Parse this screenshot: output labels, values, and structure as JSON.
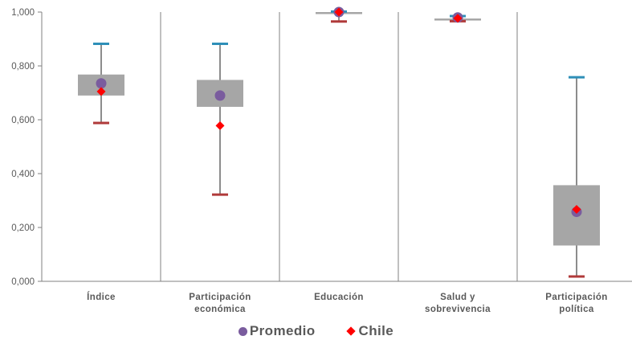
{
  "chart_data": {
    "type": "boxplot",
    "ylim": [
      0,
      1
    ],
    "yticks": [
      "0,000",
      "0,200",
      "0,400",
      "0,600",
      "0,800",
      "1,000"
    ],
    "yticks_values": [
      0,
      0.2,
      0.4,
      0.6,
      0.8,
      1.0
    ],
    "categories": [
      [
        "Índice"
      ],
      [
        "Participación",
        "económica"
      ],
      [
        "Educación"
      ],
      [
        "Salud y",
        "sobrevivencia"
      ],
      [
        "Participación",
        "política"
      ]
    ],
    "series": [
      {
        "name": "Promedio",
        "values": [
          0.735,
          0.69,
          1.0,
          0.98,
          0.258
        ]
      },
      {
        "name": "Chile",
        "values": [
          0.705,
          0.578,
          1.0,
          0.977,
          0.267
        ]
      }
    ],
    "box": [
      {
        "max": 0.882,
        "q3": 0.768,
        "q1": 0.69,
        "min": 0.588
      },
      {
        "max": 0.882,
        "q3": 0.748,
        "q1": 0.648,
        "min": 0.322
      },
      {
        "max": 1.002,
        "q3": 1.0,
        "q1": 0.995,
        "min": 0.965
      },
      {
        "max": 0.985,
        "q3": 0.976,
        "q1": 0.97,
        "min": 0.966
      },
      {
        "max": 0.758,
        "q3": 0.357,
        "q1": 0.133,
        "min": 0.018
      }
    ],
    "colors": {
      "box": "#a6a6a6",
      "max_cap": "#2e8fb8",
      "min_cap": "#b03a3a",
      "whisker": "#404040",
      "promedio": "#7a5c9e",
      "chile": "#ff0000",
      "grid": "#808080",
      "axis": "#808080"
    },
    "legend": [
      {
        "label": "Promedio",
        "marker": "circle"
      },
      {
        "label": "Chile",
        "marker": "diamond"
      }
    ]
  }
}
